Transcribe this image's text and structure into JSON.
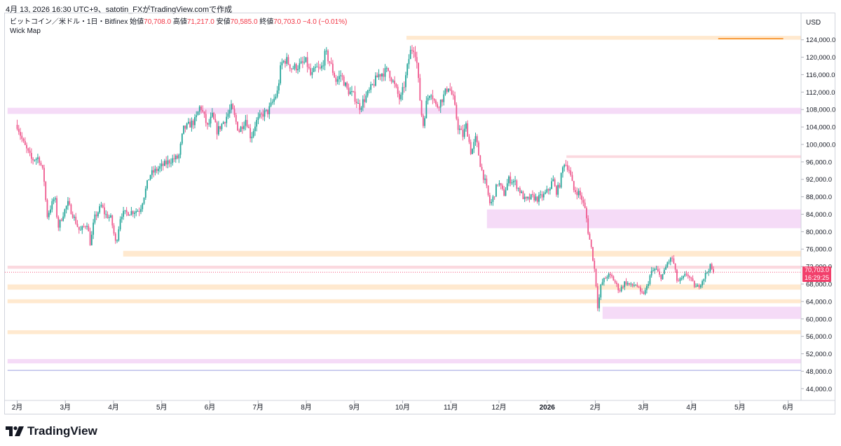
{
  "header": {
    "snapshot_text": "4月 13, 2026 16:30 UTC+9、satotin_FXがTradingView.comで作成"
  },
  "legend": {
    "symbol": "ビットコイン／米ドル・1日・Bitfinex",
    "open_label": "始値",
    "open_value": "70,708.0",
    "high_label": "高値",
    "high_value": "71,217.0",
    "low_label": "安値",
    "low_value": "70,585.0",
    "close_label": "終値",
    "close_value": "70,703.0",
    "change": "−4.0 (−0.01%)",
    "indicator": "Wick Map"
  },
  "price_axis": {
    "currency": "USD",
    "current_price": "70,703.0",
    "countdown": "16:29:25"
  },
  "footer": {
    "brand": "TradingView"
  },
  "colors": {
    "up": "#26a69a",
    "down": "#ef5a8f",
    "zone_orange": "#ffe9cf",
    "zone_pink": "#fbd9df",
    "zone_violet": "#f5dbf7",
    "current_price": "#f23f6b"
  },
  "chart_data": {
    "type": "candlestick",
    "title": "",
    "xlabel": "",
    "ylabel": "",
    "ylim": [
      42000,
      126000
    ],
    "y_ticks": [
      "124,000.0",
      "120,000.0",
      "116,000.0",
      "112,000.0",
      "108,000.0",
      "104,000.0",
      "100,000.0",
      "96,000.0",
      "92,000.0",
      "88,000.0",
      "84,000.0",
      "80,000.0",
      "76,000.0",
      "72,000.0",
      "68,000.0",
      "64,000.0",
      "60,000.0",
      "56,000.0",
      "52,000.0",
      "48,000.0",
      "44,000.0"
    ],
    "x_ticks": [
      {
        "label": "2月",
        "idx": 0
      },
      {
        "label": "3月",
        "idx": 1
      },
      {
        "label": "4月",
        "idx": 2
      },
      {
        "label": "5月",
        "idx": 3
      },
      {
        "label": "6月",
        "idx": 4
      },
      {
        "label": "7月",
        "idx": 5
      },
      {
        "label": "8月",
        "idx": 6
      },
      {
        "label": "9月",
        "idx": 7
      },
      {
        "label": "10月",
        "idx": 8
      },
      {
        "label": "11月",
        "idx": 9
      },
      {
        "label": "12月",
        "idx": 10
      },
      {
        "label": "2026",
        "idx": 11
      },
      {
        "label": "2月",
        "idx": 12
      },
      {
        "label": "3月",
        "idx": 13
      },
      {
        "label": "4月",
        "idx": 14
      },
      {
        "label": "5月",
        "idx": 15
      },
      {
        "label": "6月",
        "idx": 16
      }
    ],
    "price_path": [
      [
        0,
        104500
      ],
      [
        0.12,
        100500
      ],
      [
        0.3,
        96500
      ],
      [
        0.45,
        97000
      ],
      [
        0.55,
        93000
      ],
      [
        0.62,
        83500
      ],
      [
        0.78,
        88000
      ],
      [
        0.85,
        81000
      ],
      [
        0.95,
        84000
      ],
      [
        1.05,
        86500
      ],
      [
        1.15,
        84000
      ],
      [
        1.3,
        80000
      ],
      [
        1.45,
        82000
      ],
      [
        1.52,
        77000
      ],
      [
        1.6,
        83000
      ],
      [
        1.75,
        86000
      ],
      [
        1.82,
        84000
      ],
      [
        1.95,
        83000
      ],
      [
        2.05,
        77000
      ],
      [
        2.15,
        84000
      ],
      [
        2.35,
        84500
      ],
      [
        2.55,
        85000
      ],
      [
        2.75,
        93000
      ],
      [
        3.0,
        95000
      ],
      [
        3.2,
        96500
      ],
      [
        3.35,
        97000
      ],
      [
        3.45,
        103500
      ],
      [
        3.7,
        105500
      ],
      [
        3.8,
        109000
      ],
      [
        3.95,
        104000
      ],
      [
        4.05,
        106500
      ],
      [
        4.15,
        103000
      ],
      [
        4.3,
        105500
      ],
      [
        4.45,
        108500
      ],
      [
        4.6,
        103000
      ],
      [
        4.75,
        106000
      ],
      [
        4.85,
        101500
      ],
      [
        4.95,
        105000
      ],
      [
        5.1,
        107000
      ],
      [
        5.2,
        107500
      ],
      [
        5.25,
        108500
      ],
      [
        5.4,
        112000
      ],
      [
        5.48,
        118500
      ],
      [
        5.58,
        119500
      ],
      [
        5.7,
        117500
      ],
      [
        5.85,
        118000
      ],
      [
        6.0,
        119000
      ],
      [
        6.1,
        115500
      ],
      [
        6.2,
        117500
      ],
      [
        6.3,
        117000
      ],
      [
        6.4,
        121000
      ],
      [
        6.5,
        118500
      ],
      [
        6.62,
        114500
      ],
      [
        6.72,
        116000
      ],
      [
        6.85,
        112500
      ],
      [
        7.0,
        111000
      ],
      [
        7.1,
        108500
      ],
      [
        7.3,
        112000
      ],
      [
        7.5,
        116000
      ],
      [
        7.7,
        117000
      ],
      [
        7.85,
        113000
      ],
      [
        7.95,
        110000
      ],
      [
        8.05,
        114500
      ],
      [
        8.15,
        121000
      ],
      [
        8.22,
        122500
      ],
      [
        8.28,
        120500
      ],
      [
        8.35,
        111500
      ],
      [
        8.42,
        104000
      ],
      [
        8.5,
        110000
      ],
      [
        8.58,
        112500
      ],
      [
        8.7,
        108500
      ],
      [
        8.85,
        111000
      ],
      [
        8.95,
        113500
      ],
      [
        9.05,
        110500
      ],
      [
        9.15,
        104000
      ],
      [
        9.25,
        102000
      ],
      [
        9.32,
        104500
      ],
      [
        9.42,
        98000
      ],
      [
        9.52,
        101500
      ],
      [
        9.62,
        95000
      ],
      [
        9.72,
        91000
      ],
      [
        9.82,
        86000
      ],
      [
        9.9,
        88500
      ],
      [
        9.98,
        91500
      ],
      [
        10.1,
        88500
      ],
      [
        10.2,
        92000
      ],
      [
        10.32,
        91500
      ],
      [
        10.45,
        89000
      ],
      [
        10.55,
        87000
      ],
      [
        10.68,
        88000
      ],
      [
        10.8,
        87500
      ],
      [
        10.95,
        88500
      ],
      [
        11.05,
        90000
      ],
      [
        11.12,
        92000
      ],
      [
        11.18,
        89000
      ],
      [
        11.25,
        90500
      ],
      [
        11.35,
        96000
      ],
      [
        11.45,
        94500
      ],
      [
        11.55,
        89500
      ],
      [
        11.65,
        89000
      ],
      [
        11.72,
        87500
      ],
      [
        11.8,
        84500
      ],
      [
        11.85,
        80000
      ],
      [
        11.92,
        76000
      ],
      [
        12.0,
        70000
      ],
      [
        12.05,
        62500
      ],
      [
        12.12,
        68000
      ],
      [
        12.25,
        70000
      ],
      [
        12.35,
        69500
      ],
      [
        12.5,
        66500
      ],
      [
        12.62,
        68500
      ],
      [
        12.75,
        67500
      ],
      [
        12.85,
        68000
      ],
      [
        12.95,
        65500
      ],
      [
        13.05,
        66500
      ],
      [
        13.15,
        70500
      ],
      [
        13.25,
        71500
      ],
      [
        13.35,
        69500
      ],
      [
        13.42,
        70500
      ],
      [
        13.5,
        73000
      ],
      [
        13.6,
        74000
      ],
      [
        13.7,
        68500
      ],
      [
        13.8,
        69000
      ],
      [
        13.9,
        70500
      ],
      [
        14.0,
        68500
      ],
      [
        14.1,
        67000
      ],
      [
        14.2,
        68500
      ],
      [
        14.3,
        70500
      ],
      [
        14.38,
        72000
      ],
      [
        14.45,
        70703
      ]
    ],
    "zones": [
      {
        "from_idx": 8.08,
        "to_idx": 16.5,
        "y_low": 124000,
        "y_high": 124900,
        "color": "zone_orange"
      },
      {
        "from_idx": -0.2,
        "to_idx": 16.5,
        "y_low": 107000,
        "y_high": 108400,
        "color": "zone_violet"
      },
      {
        "from_idx": 11.4,
        "to_idx": 16.5,
        "y_low": 96900,
        "y_high": 97500,
        "color": "zone_pink"
      },
      {
        "from_idx": 9.75,
        "to_idx": 16.5,
        "y_low": 80800,
        "y_high": 85100,
        "color": "zone_violet"
      },
      {
        "from_idx": 2.2,
        "to_idx": 16.5,
        "y_low": 74300,
        "y_high": 75600,
        "color": "zone_orange"
      },
      {
        "from_idx": -0.2,
        "to_idx": 16.5,
        "y_low": 71500,
        "y_high": 72200,
        "color": "zone_pink"
      },
      {
        "from_idx": -0.2,
        "to_idx": 16.5,
        "y_low": 66700,
        "y_high": 67900,
        "color": "zone_orange"
      },
      {
        "from_idx": -0.2,
        "to_idx": 16.5,
        "y_low": 63600,
        "y_high": 64500,
        "color": "zone_orange"
      },
      {
        "from_idx": 12.15,
        "to_idx": 16.5,
        "y_low": 60000,
        "y_high": 62800,
        "color": "zone_violet"
      },
      {
        "from_idx": -0.2,
        "to_idx": 16.5,
        "y_low": 56500,
        "y_high": 57400,
        "color": "zone_orange"
      },
      {
        "from_idx": -0.2,
        "to_idx": 16.5,
        "y_low": 49800,
        "y_high": 50800,
        "color": "zone_violet"
      }
    ],
    "annotations": [
      {
        "type": "hline",
        "from_idx": 14.55,
        "to_idx": 15.9,
        "y": 124250,
        "color": "#f57c00"
      },
      {
        "type": "hline",
        "from_idx": -0.2,
        "to_idx": 16.5,
        "y": 48200,
        "color": "#b7b9e8"
      }
    ]
  }
}
